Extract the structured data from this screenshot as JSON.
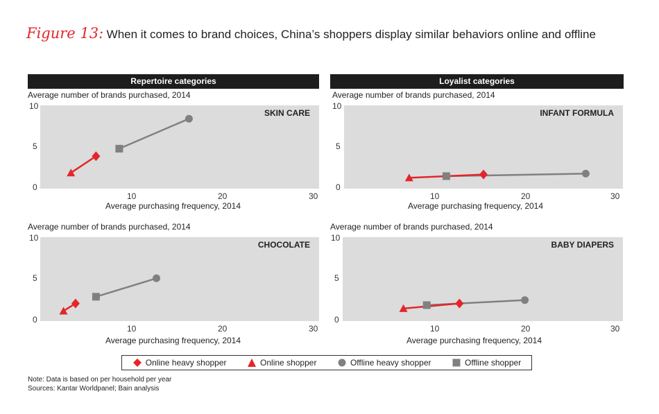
{
  "figure": {
    "label": "Figure 13:",
    "title": "When it comes to brand choices, China’s shoppers display similar behaviors online and offline"
  },
  "colors": {
    "online": "#e3262b",
    "offline": "#808080",
    "plot_bg": "#dcdcdc",
    "header_bg": "#1d1d1d"
  },
  "panels_header": {
    "left": "Repertoire categories",
    "right": "Loyalist categories"
  },
  "chart_data": [
    {
      "type": "line",
      "category": "SKIN CARE",
      "group": "Repertoire categories",
      "ylabel": "Average number of brands purchased, 2014",
      "xlabel": "Average purchasing frequency, 2014",
      "xlim": [
        0,
        30
      ],
      "ylim": [
        0,
        10
      ],
      "xticks": [
        "10",
        "20",
        "30"
      ],
      "yticks": [
        "0",
        "5",
        "10"
      ],
      "online": {
        "shopper": [
          3.3,
          1.9
        ],
        "heavy": [
          6.0,
          3.9
        ]
      },
      "offline": {
        "shopper": [
          8.5,
          4.8
        ],
        "heavy": [
          16.0,
          8.4
        ]
      }
    },
    {
      "type": "line",
      "category": "INFANT FORMULA",
      "group": "Loyalist categories",
      "ylabel": "Average number of brands purchased, 2014",
      "xlabel": "Average purchasing frequency, 2014",
      "xlim": [
        0,
        30
      ],
      "ylim": [
        0,
        10
      ],
      "xticks": [
        "10",
        "20",
        "30"
      ],
      "yticks": [
        "0",
        "5",
        "10"
      ],
      "online": {
        "shopper": [
          7.0,
          1.3
        ],
        "heavy": [
          15.0,
          1.7
        ]
      },
      "offline": {
        "shopper": [
          11.0,
          1.5
        ],
        "heavy": [
          26.0,
          1.8
        ]
      }
    },
    {
      "type": "line",
      "category": "CHOCOLATE",
      "group": "Repertoire categories",
      "ylabel": "Average number of brands purchased, 2014",
      "xlabel": "Average purchasing frequency, 2014",
      "xlim": [
        0,
        30
      ],
      "ylim": [
        0,
        10
      ],
      "xticks": [
        "10",
        "20",
        "30"
      ],
      "yticks": [
        "0",
        "5",
        "10"
      ],
      "online": {
        "shopper": [
          2.5,
          1.2
        ],
        "heavy": [
          3.8,
          2.1
        ]
      },
      "offline": {
        "shopper": [
          6.0,
          2.9
        ],
        "heavy": [
          12.5,
          5.1
        ]
      }
    },
    {
      "type": "line",
      "category": "BABY DIAPERS",
      "group": "Loyalist categories",
      "ylabel": "Average number of brands purchased, 2014",
      "xlabel": "Average purchasing frequency, 2014",
      "xlim": [
        0,
        30
      ],
      "ylim": [
        0,
        10
      ],
      "xticks": [
        "10",
        "20",
        "30"
      ],
      "yticks": [
        "0",
        "5",
        "10"
      ],
      "online": {
        "shopper": [
          6.5,
          1.5
        ],
        "heavy": [
          12.5,
          2.1
        ]
      },
      "offline": {
        "shopper": [
          9.0,
          1.9
        ],
        "heavy": [
          19.5,
          2.5
        ]
      }
    }
  ],
  "legend": {
    "online_heavy": "Online heavy shopper",
    "online": "Online shopper",
    "offline_heavy": "Offline heavy shopper",
    "offline": "Offline shopper"
  },
  "note": "Note: Data is based on per household per year",
  "sources": "Sources: Kantar Worldpanel; Bain analysis"
}
